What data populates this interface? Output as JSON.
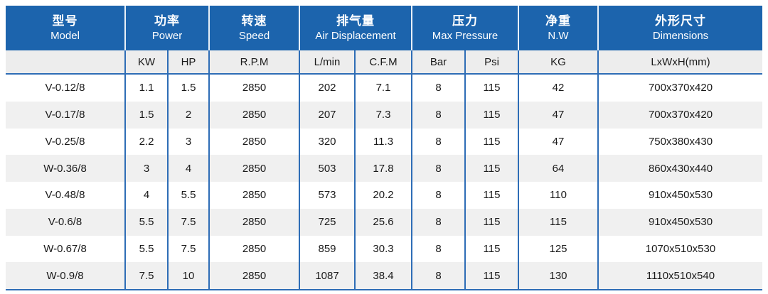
{
  "colors": {
    "header_bg": "#1c64ad",
    "header_text": "#ffffff",
    "divider_blue": "#2e6db6",
    "subheader_bg": "#ededed",
    "row_bg": "#ffffff",
    "row_alt_bg": "#f0f0f0",
    "body_text": "#1a1a1a"
  },
  "table": {
    "column_keys": [
      "model",
      "power-kw",
      "power-hp",
      "speed-rpm",
      "displacement-lmin",
      "displacement-cfm",
      "pressure-bar",
      "pressure-psi",
      "net-weight-kg",
      "dimensions"
    ],
    "header_groups": [
      {
        "zh": "型号",
        "en": "Model"
      },
      {
        "zh": "功率",
        "en": "Power"
      },
      {
        "zh": "转速",
        "en": "Speed"
      },
      {
        "zh": "排气量",
        "en": "Air Displacement"
      },
      {
        "zh": "压力",
        "en": "Max Pressure"
      },
      {
        "zh": "净重",
        "en": "N.W"
      },
      {
        "zh": "外形尺寸",
        "en": "Dimensions"
      }
    ],
    "subheaders": [
      "",
      "KW",
      "HP",
      "R.P.M",
      "L/min",
      "C.F.M",
      "Bar",
      "Psi",
      "KG",
      "LxWxH(mm)"
    ],
    "rows": [
      [
        "V-0.12/8",
        "1.1",
        "1.5",
        "2850",
        "202",
        "7.1",
        "8",
        "115",
        "42",
        "700x370x420"
      ],
      [
        "V-0.17/8",
        "1.5",
        "2",
        "2850",
        "207",
        "7.3",
        "8",
        "115",
        "47",
        "700x370x420"
      ],
      [
        "V-0.25/8",
        "2.2",
        "3",
        "2850",
        "320",
        "11.3",
        "8",
        "115",
        "47",
        "750x380x430"
      ],
      [
        "W-0.36/8",
        "3",
        "4",
        "2850",
        "503",
        "17.8",
        "8",
        "115",
        "64",
        "860x430x440"
      ],
      [
        "V-0.48/8",
        "4",
        "5.5",
        "2850",
        "573",
        "20.2",
        "8",
        "115",
        "110",
        "910x450x530"
      ],
      [
        "V-0.6/8",
        "5.5",
        "7.5",
        "2850",
        "725",
        "25.6",
        "8",
        "115",
        "115",
        "910x450x530"
      ],
      [
        "W-0.67/8",
        "5.5",
        "7.5",
        "2850",
        "859",
        "30.3",
        "8",
        "115",
        "125",
        "1070x510x530"
      ],
      [
        "W-0.9/8",
        "7.5",
        "10",
        "2850",
        "1087",
        "38.4",
        "8",
        "115",
        "130",
        "1110x510x540"
      ]
    ]
  }
}
